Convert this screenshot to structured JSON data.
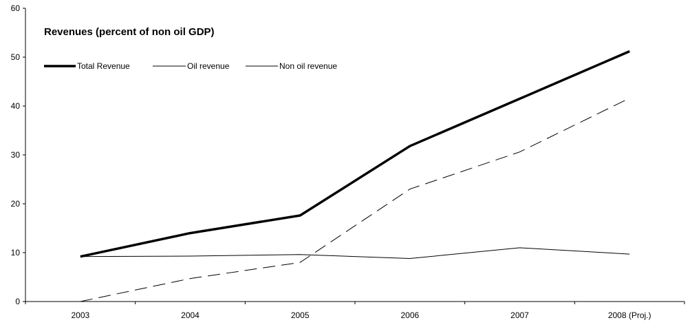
{
  "chart_data": {
    "type": "line",
    "title": "Revenues (percent of non oil GDP)",
    "xlabel": "",
    "ylabel": "",
    "categories": [
      "2003",
      "2004",
      "2005",
      "2006",
      "2007",
      "2008 (Proj.)"
    ],
    "ylim": [
      0,
      60
    ],
    "yticks": [
      "0",
      "10",
      "20",
      "30",
      "40",
      "50",
      "60"
    ],
    "grid": false,
    "legend_position": "top-left",
    "series": [
      {
        "name": "Total Revenue",
        "values": [
          9.2,
          14.0,
          17.6,
          31.8,
          41.5,
          51.2
        ],
        "color": "#000000",
        "style": "thick-solid"
      },
      {
        "name": "Oil revenue",
        "values": [
          0.0,
          4.7,
          8.0,
          23.0,
          30.6,
          41.6
        ],
        "color": "#000000",
        "style": "dashed"
      },
      {
        "name": "Non oil revenue",
        "values": [
          9.2,
          9.3,
          9.6,
          8.8,
          11.0,
          9.7
        ],
        "color": "#000000",
        "style": "thin-solid"
      }
    ]
  }
}
